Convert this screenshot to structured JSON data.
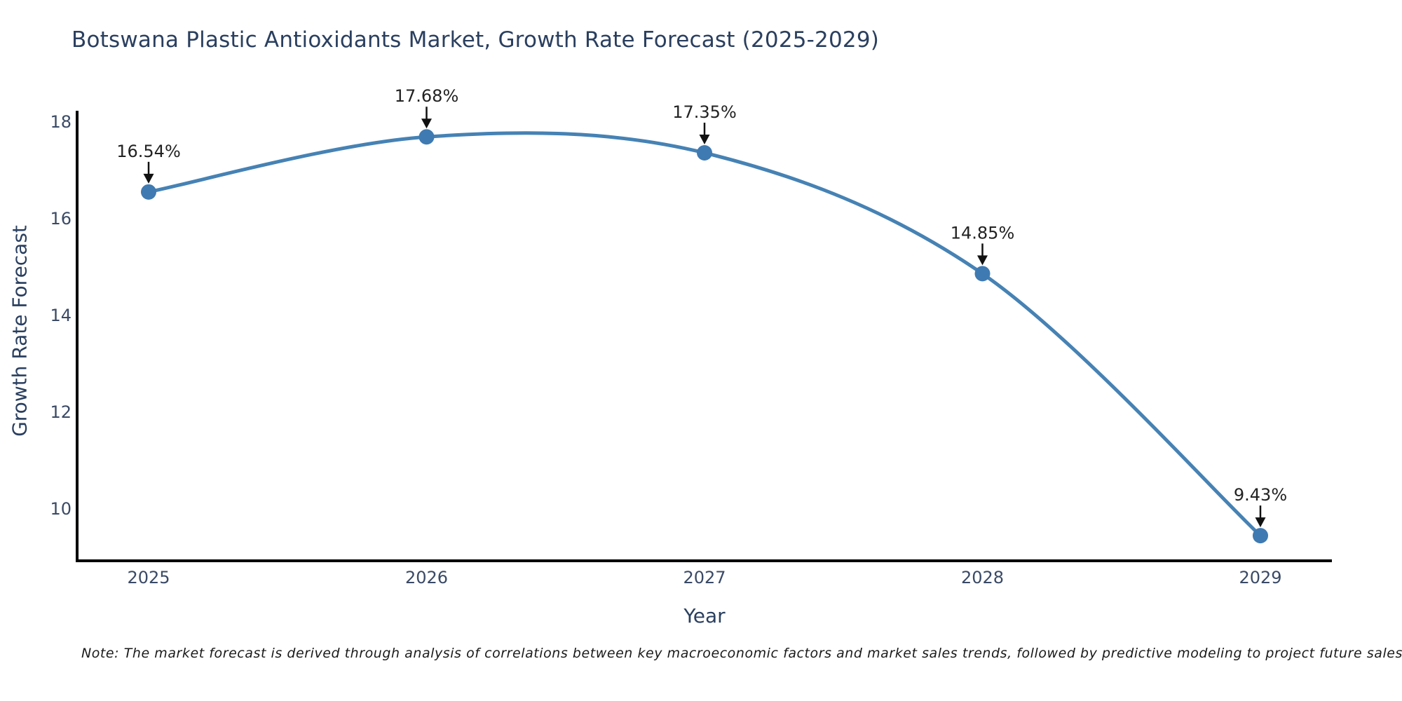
{
  "note": "Note: The market forecast is derived through analysis of correlations between key macroeconomic factors and market sales trends, followed by predictive modeling to project future sales",
  "chart_data": {
    "type": "line",
    "title": "Botswana Plastic Antioxidants Market, Growth Rate Forecast (2025-2029)",
    "xlabel": "Year",
    "ylabel": "Growth Rate Forecast",
    "categories": [
      "2025",
      "2026",
      "2027",
      "2028",
      "2029"
    ],
    "values": [
      16.54,
      17.68,
      17.35,
      14.85,
      9.43
    ],
    "point_labels": [
      "16.54%",
      "17.68%",
      "17.35%",
      "14.85%",
      "9.43%"
    ],
    "line_shape": "spline",
    "markers": true,
    "yticks": [
      10,
      12,
      14,
      16,
      18
    ],
    "ylim": [
      8.91,
      18.22
    ],
    "grid": false,
    "legend": false,
    "annotations_have_arrows": true,
    "colors": {
      "line": "#4682b4",
      "marker": "#3f7ab2",
      "axis": "#000000",
      "title": "#2a3f5f",
      "tick": "#3a4a66",
      "annotation": "#222222",
      "background": "#ffffff"
    }
  }
}
